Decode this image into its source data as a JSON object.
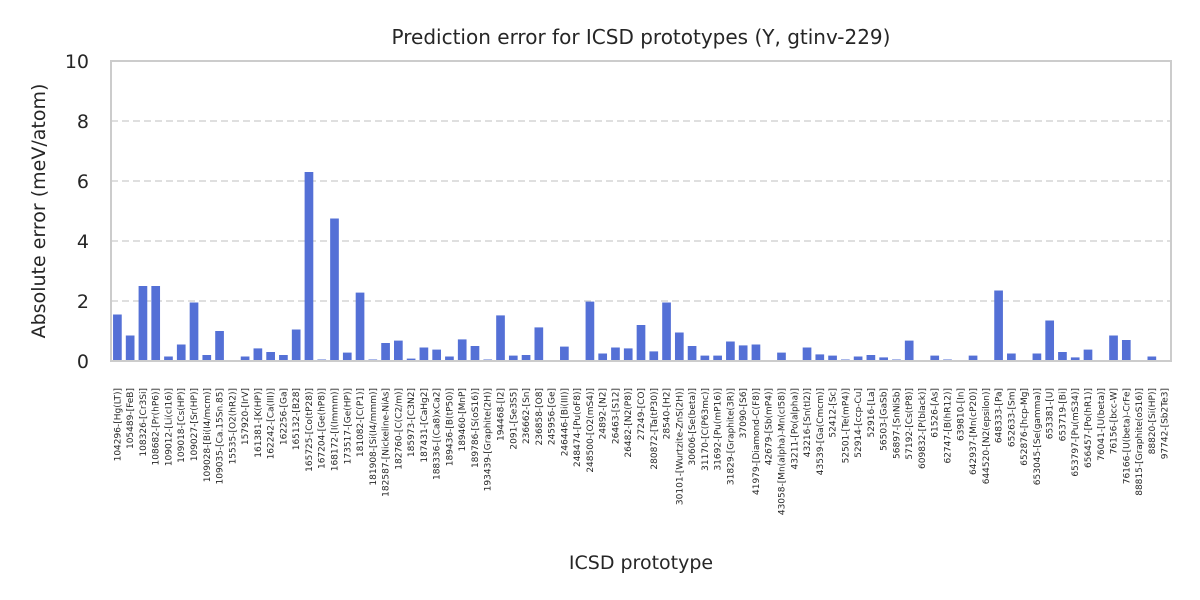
{
  "chart_data": {
    "type": "bar",
    "title": "Prediction error for ICSD prototypes (Y, gtinv-229)",
    "xlabel": "ICSD prototype",
    "ylabel": "Absolute error (meV/atom)",
    "ylim": [
      0,
      10
    ],
    "yticks": [
      0,
      2,
      4,
      6,
      8,
      10
    ],
    "grid": "y dashed",
    "bar_color": "#5470d6",
    "categories": [
      "104296-[Hg(LT)]",
      "105489-[FeB]",
      "108326-[Cr3Si]",
      "108682-[Pr(hP6)]",
      "109012-[Li(cI16)]",
      "109018-[Cs(HP)]",
      "109027-[Sr(HP)]",
      "109028-[Bi(I4/mcm)]",
      "109035-[Ca.15Sn.85]",
      "15535-[O2(hR2)]",
      "157920-[IrV]",
      "161381-[K(HP)]",
      "162242-[Ca(III)]",
      "162256-[Ga]",
      "165132-[B28]",
      "165725-[Co(tP28)]",
      "167204-[Ge(hP8)]",
      "168172-[I(Immm)]",
      "173517-[Ge(HP)]",
      "181082-[C(P1)]",
      "181908-[Si(I4/mmm)]",
      "182587-[Nickeline-NiAs]",
      "182760-[C(C2/m)]",
      "185973-[C3N2]",
      "187431-[CaHg2]",
      "188336-[(Ca8)xCa2]",
      "189436-[B(tP50)]",
      "189460-[MnP]",
      "189786-[S(oS16)]",
      "193439-[Graphite(2H)]",
      "194468-[I2]",
      "2091-[Se3S5]",
      "236662-[Sn]",
      "236858-[O8]",
      "245956-[Ge]",
      "246446-[Bi(III)]",
      "248474-[Pu(oF8)]",
      "248500-[O2(mS4)]",
      "24892-[N2]",
      "26463-[S12]",
      "26482-[N2(P8)]",
      "27249-[CO]",
      "280872-[Ta(tP30)]",
      "28540-[H2]",
      "30101-[Wurtzite-ZnS(2H)]",
      "30606-[Se(beta)]",
      "31170-[C(P63mc)]",
      "31692-[Pu(mP16)]",
      "31829-[Graphite(3R)]",
      "37090-[S6]",
      "41979-[Diamond-C(F8)]",
      "42679-[Sb(mP4)]",
      "43058-[Mn(alpha)-Mn(cI58)]",
      "43211-[Po(alpha)]",
      "43216-[Sn(tI2)]",
      "43539-[Ga(Cmcm)]",
      "52412-[Sc]",
      "52501-[Te(mP4)]",
      "52914-[ccp-Cu]",
      "52916-[La]",
      "56503-[GaSb]",
      "56897-[SnNiSb]",
      "57192-[Cs(tP8)]",
      "609832-[P(black)]",
      "61526-[As]",
      "62747-[B(hR12)]",
      "639810-[In]",
      "642937-[Mn(cP20)]",
      "644520-[N2(epsilon)]",
      "648333-[Pa]",
      "652633-[Sm]",
      "652876-[hcp-Mg]",
      "653045-[Se(gamma)]",
      "653381-[U]",
      "653719-[Bi]",
      "653797-[Pu(mS34)]",
      "656457-[Po(hR1)]",
      "76041-[U(beta)]",
      "76156-[bcc-W]",
      "76166-[U(beta)-CrFe]",
      "88815-[Graphite(oS16)]",
      "88820-[Si(HP)]",
      "97742-[Sb2Te3]"
    ],
    "values": [
      1.55,
      0.85,
      2.5,
      2.5,
      0.15,
      0.55,
      1.95,
      0.2,
      1.0,
      0.0,
      0.15,
      0.42,
      0.3,
      0.2,
      1.05,
      6.3,
      0.05,
      4.75,
      0.28,
      2.28,
      0.05,
      0.6,
      0.68,
      0.08,
      0.45,
      0.38,
      0.15,
      0.72,
      0.5,
      0.05,
      1.52,
      0.18,
      0.2,
      1.12,
      0.0,
      0.48,
      0.0,
      1.98,
      0.25,
      0.45,
      0.42,
      1.2,
      0.32,
      1.95,
      0.95,
      0.5,
      0.18,
      0.18,
      0.65,
      0.52,
      0.55,
      0.0,
      0.28,
      0.0,
      0.45,
      0.22,
      0.18,
      0.05,
      0.15,
      0.2,
      0.12,
      0.05,
      0.68,
      0.0,
      0.18,
      0.05,
      0.0,
      0.18,
      0.0,
      2.35,
      0.25,
      0.0,
      0.25,
      1.35,
      0.3,
      0.12,
      0.38,
      0.0,
      0.85,
      0.7,
      0.0,
      0.15,
      0.0
    ]
  }
}
